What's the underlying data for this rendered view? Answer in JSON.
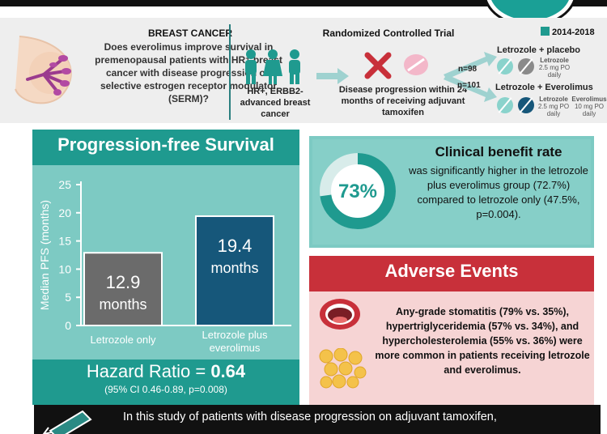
{
  "header": {
    "question_title": "BREAST CANCER",
    "question_text": "Does everolimus improve survival in premenopausal patients with HR⁺ breast cancer with disease progression on selective estrogen receptor modulator (SERM)?",
    "rct_title": "Randomized Controlled Trial",
    "years": "2014-2018",
    "population": "HR+, ERBB2- advanced breast cancer",
    "disease_progression": "Disease progression within 24 months of receiving adjuvant tamoxifen",
    "n_placebo": "n=98",
    "n_everolimus": "n=101",
    "arm1_title": "Letrozole + placebo",
    "arm2_title": "Letrozole + Everolimus",
    "arm1_drug": "Letrozole",
    "arm1_dose": "2.5 mg PO daily",
    "arm2_drug1": "Letrozole",
    "arm2_dose1": "2.5 mg PO daily",
    "arm2_drug2": "Everolimus",
    "arm2_dose2": "10 mg PO daily"
  },
  "pfs": {
    "title": "Progression-free Survival",
    "hazard_label": "Hazard Ratio = ",
    "hazard_value": "0.64",
    "ci_text": "(95% CI 0.46-0.89, p=0.008)"
  },
  "chart_data": {
    "type": "bar",
    "title": "Progression-free Survival",
    "ylabel": "Median PFS (months)",
    "xlabel": "",
    "ylim": [
      0,
      25
    ],
    "yticks": [
      0,
      5,
      10,
      15,
      20,
      25
    ],
    "categories": [
      "Letrozole only",
      "Letrozole plus everolimus"
    ],
    "values": [
      12.9,
      19.4
    ],
    "bar_labels": [
      "12.9 months",
      "19.4 months"
    ],
    "bar_colors": [
      "#6b6b6b",
      "#16577a"
    ]
  },
  "cbr": {
    "percent": "73%",
    "percent_value": 72.7,
    "title": "Clinical benefit rate",
    "text": "was significantly higher in the letrozole plus everolimus group (72.7%) compared to letrozole only (47.5%, p=0.004)."
  },
  "adverse": {
    "title": "Adverse Events",
    "text": "Any-grade stomatitis (79% vs. 35%), hypertriglyceridemia (57% vs. 34%), and hypercholesterolemia (55% vs. 36%) were more common in patients receiving letrozole and everolimus."
  },
  "bottom": {
    "text": "In this study of patients with disease progression on adjuvant tamoxifen,"
  },
  "colors": {
    "teal_dark": "#1f9a8f",
    "teal_light": "#7dcac3",
    "red": "#c8303a",
    "navy": "#16577a",
    "gray": "#6b6b6b"
  }
}
